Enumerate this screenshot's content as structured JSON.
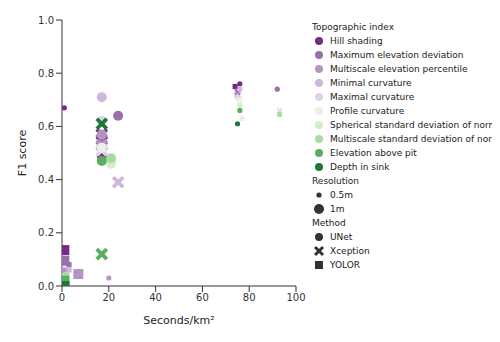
{
  "chart_data": {
    "type": "scatter",
    "x_label": "Seconds/km²",
    "y_label": "F1 score",
    "xlim": [
      0,
      100
    ],
    "xticks": [
      0,
      20,
      40,
      60,
      80,
      100
    ],
    "ylim": [
      0,
      1
    ],
    "yticks": [
      {
        "value": 0,
        "label": "0.0"
      },
      0.2,
      0.4,
      0.6,
      0.8,
      {
        "value": 1,
        "label": "1.0"
      }
    ],
    "legend": "right",
    "legend_titles": {
      "series": "Topographic index",
      "resolution": "Resolution",
      "method": "Method"
    },
    "resolutions": [
      "0.5m",
      "1m"
    ],
    "methods": [
      {
        "name": "UNet",
        "marker": "circle"
      },
      {
        "name": "Xception",
        "marker": "x"
      },
      {
        "name": "YOLOR",
        "marker": "square"
      }
    ],
    "series": [
      {
        "name": "Hill shading",
        "color": "#762a83",
        "x": [
          17,
          17,
          1,
          1,
          76,
          74
        ],
        "y": [
          0.49,
          0.57,
          0.135,
          0.67,
          0.76,
          0.75
        ],
        "method": [
          "UNet",
          "Xception",
          "YOLOR",
          "UNet",
          "UNet",
          "YOLOR"
        ],
        "resolution": [
          "1m",
          "1m",
          "1m",
          "0.5m",
          "0.5m",
          "0.5m"
        ]
      },
      {
        "name": "Maximum elevation deviation",
        "color": "#9970ab",
        "x": [
          24,
          17,
          1,
          92,
          75,
          3
        ],
        "y": [
          0.64,
          0.55,
          0.095,
          0.74,
          0.73,
          0.08
        ],
        "method": [
          "UNet",
          "Xception",
          "YOLOR",
          "UNet",
          "Xception",
          "YOLOR"
        ],
        "resolution": [
          "1m",
          "1m",
          "1m",
          "0.5m",
          "0.5m",
          "0.5m"
        ]
      },
      {
        "name": "Multiscale elevation percentile",
        "color": "#b594c4",
        "x": [
          17,
          17,
          7,
          20,
          75,
          1
        ],
        "y": [
          0.57,
          0.53,
          0.045,
          0.03,
          0.72,
          0.06
        ],
        "method": [
          "UNet",
          "Xception",
          "YOLOR",
          "UNet",
          "Xception",
          "YOLOR"
        ],
        "resolution": [
          "1m",
          "1m",
          "1m",
          "0.5m",
          "0.5m",
          "0.5m"
        ]
      },
      {
        "name": "Minimal curvature",
        "color": "#cfb6da",
        "x": [
          17,
          24,
          76,
          3
        ],
        "y": [
          0.71,
          0.39,
          0.74,
          0.06
        ],
        "method": [
          "UNet",
          "Xception",
          "UNet",
          "YOLOR"
        ],
        "resolution": [
          "1m",
          "1m",
          "0.5m",
          "0.5m"
        ]
      },
      {
        "name": "Maximal curvature",
        "color": "#e2d0e6",
        "x": [
          17,
          17,
          75
        ],
        "y": [
          0.62,
          0.51,
          0.71
        ],
        "method": [
          "UNet",
          "Xception",
          "UNet"
        ],
        "resolution": [
          "1m",
          "1m",
          "0.5m"
        ]
      },
      {
        "name": "Profile curvature",
        "color": "#ecefe6",
        "x": [
          17,
          77,
          76
        ],
        "y": [
          0.52,
          0.63,
          0.7
        ],
        "method": [
          "UNet",
          "UNet",
          "Xception"
        ],
        "resolution": [
          "1m",
          "0.5m",
          "0.5m"
        ]
      },
      {
        "name": "Spherical standard deviation of normal",
        "color": "#d5ecce",
        "x": [
          21,
          76,
          93
        ],
        "y": [
          0.46,
          0.68,
          0.66
        ],
        "method": [
          "UNet",
          "UNet",
          "Xception"
        ],
        "resolution": [
          "1m",
          "0.5m",
          "0.5m"
        ]
      },
      {
        "name": "Multiscale standard deviation of normal",
        "color": "#a6dba0",
        "x": [
          21,
          93,
          1,
          2
        ],
        "y": [
          0.48,
          0.645,
          0.03,
          0.04
        ],
        "method": [
          "UNet",
          "UNet",
          "YOLOR",
          "YOLOR"
        ],
        "resolution": [
          "1m",
          "0.5m",
          "1m",
          "0.5m"
        ]
      },
      {
        "name": "Elevation above pit",
        "color": "#5aae61",
        "x": [
          17,
          17,
          1,
          76
        ],
        "y": [
          0.47,
          0.12,
          0.02,
          0.66
        ],
        "method": [
          "UNet",
          "Xception",
          "YOLOR",
          "UNet"
        ],
        "resolution": [
          "1m",
          "1m",
          "1m",
          "0.5m"
        ]
      },
      {
        "name": "Depth in sink",
        "color": "#1b7837",
        "x": [
          17,
          1,
          75,
          2
        ],
        "y": [
          0.61,
          0,
          0.61,
          0.005
        ],
        "method": [
          "Xception",
          "YOLOR",
          "UNet",
          "YOLOR"
        ],
        "resolution": [
          "1m",
          "1m",
          "0.5m",
          "0.5m"
        ]
      }
    ]
  }
}
